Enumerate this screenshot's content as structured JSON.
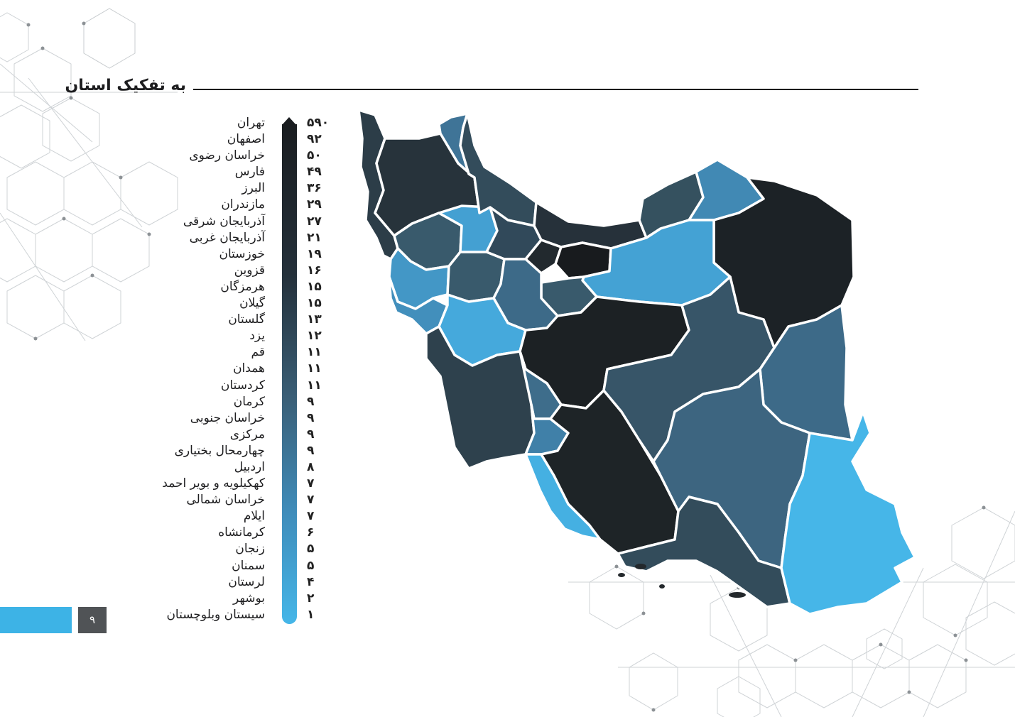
{
  "header": {
    "title": "به تفکیک استان"
  },
  "legend": {
    "scale_color_high": "#1a1d20",
    "scale_color_low": "#45b6e8",
    "items": [
      {
        "name": "تهران",
        "value": "۵۹۰"
      },
      {
        "name": "اصفهان",
        "value": "۹۲"
      },
      {
        "name": "خراسان رضوی",
        "value": "۵۰"
      },
      {
        "name": "فارس",
        "value": "۴۹"
      },
      {
        "name": "البرز",
        "value": "۳۶"
      },
      {
        "name": "مازندران",
        "value": "۲۹"
      },
      {
        "name": "آذربایجان شرقی",
        "value": "۲۷"
      },
      {
        "name": "آذربایجان غربی",
        "value": "۲۱"
      },
      {
        "name": "خوزستان",
        "value": "۱۹"
      },
      {
        "name": "قزوین",
        "value": "۱۶"
      },
      {
        "name": "هرمزگان",
        "value": "۱۵"
      },
      {
        "name": "گیلان",
        "value": "۱۵"
      },
      {
        "name": "گلستان",
        "value": "۱۳"
      },
      {
        "name": "یزد",
        "value": "۱۲"
      },
      {
        "name": "قم",
        "value": "۱۱"
      },
      {
        "name": "همدان",
        "value": "۱۱"
      },
      {
        "name": "کردستان",
        "value": "۱۱"
      },
      {
        "name": "کرمان",
        "value": "۹"
      },
      {
        "name": "خراسان جنوبی",
        "value": "۹"
      },
      {
        "name": "مرکزی",
        "value": "۹"
      },
      {
        "name": "چهارمحال بختیاری",
        "value": "۹"
      },
      {
        "name": "اردبیل",
        "value": "۸"
      },
      {
        "name": "کهکیلویه و بویر احمد",
        "value": "۷"
      },
      {
        "name": "خراسان شمالی",
        "value": "۷"
      },
      {
        "name": "ایلام",
        "value": "۷"
      },
      {
        "name": "کرمانشاه",
        "value": "۶"
      },
      {
        "name": "زنجان",
        "value": "۵"
      },
      {
        "name": "سمنان",
        "value": "۵"
      },
      {
        "name": "لرستان",
        "value": "۴"
      },
      {
        "name": "بوشهر",
        "value": "۲"
      },
      {
        "name": "سیستان وبلوچستان",
        "value": "۱"
      }
    ]
  },
  "map": {
    "region_colors": {
      "tehran": "#181b1e",
      "isfahan": "#1c2124",
      "khorasan_razavi": "#1c2226",
      "fars": "#1e2427",
      "alborz": "#22292e",
      "mazandaran": "#26313a",
      "azarbayjan_sharghi": "#27333b",
      "azarbayjan_gharbi": "#2c3d48",
      "khuzestan": "#2e414d",
      "qazvin": "#31495a",
      "hormozgan": "#334c5b",
      "gilan": "#334c5b",
      "golestan": "#35515f",
      "yazd": "#375568",
      "qom": "#395a6c",
      "hamadan": "#395a6c",
      "kordestan": "#395a6c",
      "kerman": "#3d6580",
      "khorasan_jonubi": "#3d6a88",
      "markazi": "#3d6a88",
      "chaharmahal": "#3e6d8b",
      "ardabil": "#3f7497",
      "kohgiluyeh": "#4080a8",
      "khorasan_shomali": "#4189b4",
      "ilam": "#428fbc",
      "kermanshah": "#4397c6",
      "zanjan": "#44a0d2",
      "semnan": "#44a2d4",
      "lorestan": "#45a9dc",
      "bushehr": "#45b0e2",
      "sistan": "#46b6e8"
    }
  },
  "footer": {
    "page_number": "۹"
  }
}
